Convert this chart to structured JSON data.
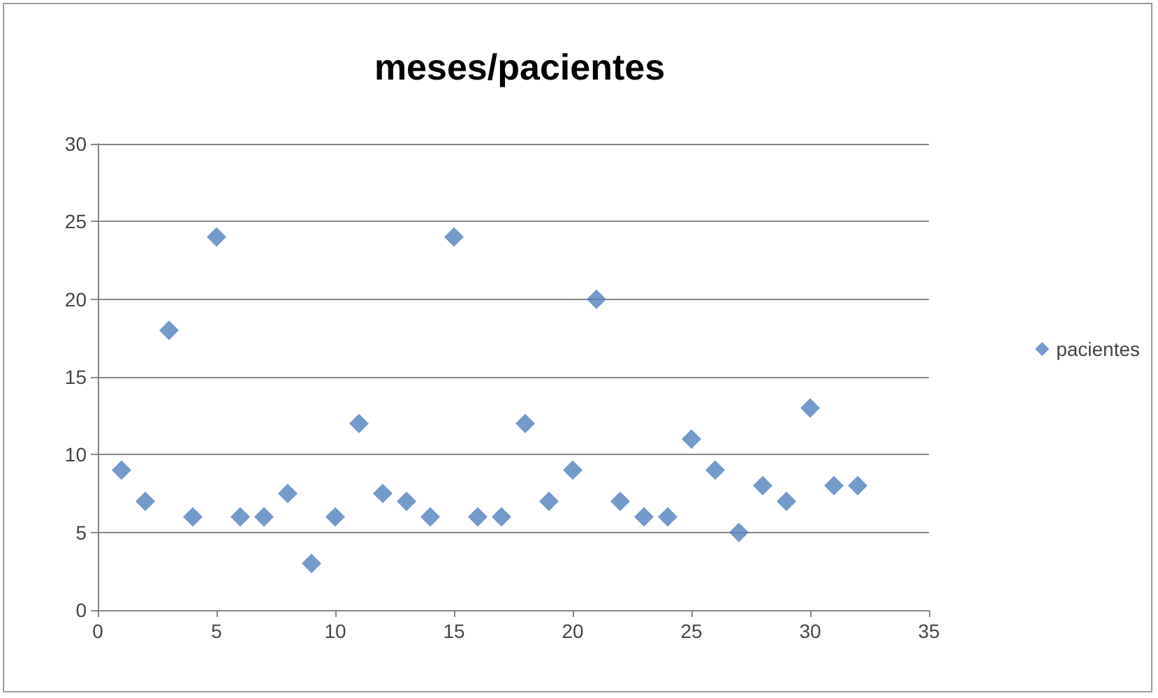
{
  "chart_data": {
    "type": "scatter",
    "title": "meses/pacientes",
    "x": [
      1,
      2,
      3,
      4,
      5,
      6,
      7,
      8,
      9,
      10,
      11,
      12,
      13,
      14,
      15,
      16,
      17,
      18,
      19,
      20,
      21,
      22,
      23,
      24,
      25,
      26,
      27,
      28,
      29,
      30,
      31,
      32
    ],
    "series": [
      {
        "name": "pacientes",
        "color": "#4f81bd",
        "values": [
          9,
          7,
          18,
          6,
          24,
          6,
          6,
          7.5,
          3,
          6,
          12,
          7.5,
          7,
          6,
          24,
          6,
          6,
          12,
          7,
          9,
          20,
          7,
          6,
          6,
          11,
          9,
          5,
          8,
          7,
          13,
          8,
          8
        ]
      }
    ],
    "xlim": [
      0,
      35
    ],
    "xticks": [
      0,
      5,
      10,
      15,
      20,
      25,
      30,
      35
    ],
    "ylim": [
      0,
      30
    ],
    "yticks": [
      0,
      5,
      10,
      15,
      20,
      25,
      30
    ],
    "grid": "y",
    "legend": "right",
    "marker": "diamond"
  }
}
